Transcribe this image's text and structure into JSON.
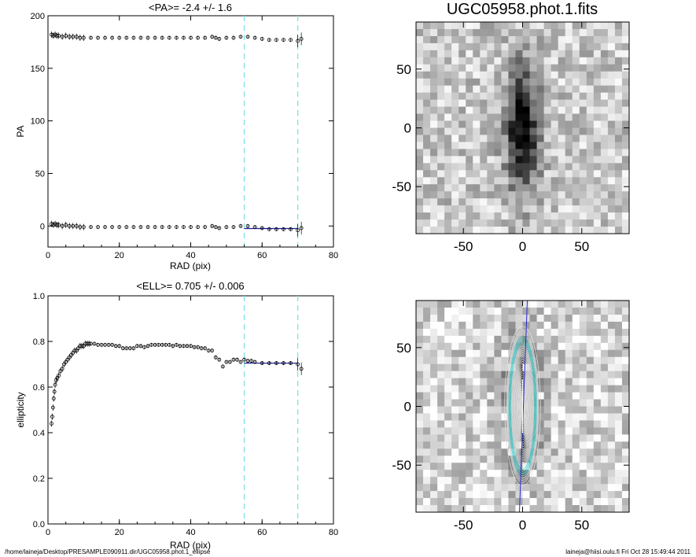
{
  "footer": {
    "left": "/home/laineja/Desktop/PRESAMPLE090911.dir/UGC05958.phot.1_ellipse",
    "right": "laineja@hiisi.oulu.fi  Fri Oct 28 15:49:44 2011"
  },
  "image_title": "UGC05958.phot.1.fits",
  "image_axes": {
    "ticks": [
      "-50",
      "0",
      "50"
    ],
    "tick_values": [
      -50,
      0,
      50
    ],
    "range": [
      -90,
      90
    ]
  },
  "chart_data": [
    {
      "type": "scatter",
      "title": "<PA>=  -2.4 +/-   1.6",
      "xlabel": "RAD (pix)",
      "ylabel": "PA",
      "xlim": [
        0,
        80
      ],
      "ylim": [
        -20,
        200
      ],
      "xticks": [
        "0",
        "20",
        "40",
        "60",
        "80"
      ],
      "yticks": [
        "0",
        "50",
        "100",
        "150",
        "200"
      ],
      "vlines": [
        55,
        70
      ],
      "fit_range": [
        55,
        70
      ],
      "fit_value": -2.4,
      "series": [
        {
          "x": [
            1,
            1.5,
            2,
            2.5,
            3,
            4,
            5,
            6,
            7,
            8,
            9,
            10,
            12,
            14,
            16,
            18,
            20,
            22,
            24,
            26,
            28,
            30,
            32,
            34,
            36,
            38,
            40,
            42,
            44,
            46,
            47,
            48,
            50,
            52,
            54,
            56,
            58,
            60,
            62,
            64,
            66,
            68,
            70,
            71
          ],
          "y": [
            182,
            181,
            182,
            181,
            181,
            180,
            181,
            180,
            180,
            180,
            179,
            179,
            179,
            179,
            179,
            179,
            179,
            179,
            179,
            179,
            179,
            179,
            179,
            179,
            179,
            179,
            179,
            179,
            179,
            180,
            179,
            178,
            179,
            179,
            180,
            180,
            179,
            178,
            177,
            177,
            177,
            177,
            176,
            178
          ]
        },
        {
          "x": [
            1,
            1.5,
            2,
            2.5,
            3,
            4,
            5,
            6,
            7,
            8,
            9,
            10,
            12,
            14,
            16,
            18,
            20,
            22,
            24,
            26,
            28,
            30,
            32,
            34,
            36,
            38,
            40,
            42,
            44,
            46,
            47,
            48,
            50,
            52,
            54,
            56,
            58,
            60,
            62,
            64,
            66,
            68,
            70,
            71
          ],
          "y": [
            2,
            1,
            2,
            1,
            1,
            0,
            1,
            0,
            0,
            0,
            -1,
            -1,
            -1,
            -1,
            -1,
            -1,
            -1,
            -1,
            -1,
            -1,
            -1,
            -1,
            -1,
            -1,
            -1,
            -1,
            -1,
            -1,
            -1,
            0,
            -1,
            -2,
            -1,
            -1,
            0,
            0,
            -1,
            -2,
            -3,
            -3,
            -3,
            -3,
            -4,
            -2
          ]
        }
      ]
    },
    {
      "type": "scatter",
      "title": "<ELL>= 0.705 +/-  0.006",
      "xlabel": "RAD (pix)",
      "ylabel": "ellipticity",
      "xlim": [
        0,
        80
      ],
      "ylim": [
        0,
        1
      ],
      "xticks": [
        "0",
        "20",
        "40",
        "60",
        "80"
      ],
      "yticks": [
        "0.0",
        "0.2",
        "0.4",
        "0.6",
        "0.8",
        "1.0"
      ],
      "vlines": [
        55,
        70
      ],
      "fit_range": [
        55,
        70
      ],
      "fit_value": 0.705,
      "series": [
        {
          "x": [
            1,
            1.2,
            1.4,
            1.6,
            1.8,
            2,
            2.3,
            2.6,
            3,
            3.5,
            4,
            4.5,
            5,
            5.5,
            6,
            6.5,
            7,
            7.5,
            8,
            8.5,
            9,
            9.5,
            10,
            10.5,
            11,
            11.5,
            12,
            13,
            14,
            15,
            16,
            17,
            18,
            19,
            20,
            21,
            22,
            23,
            24,
            25,
            26,
            27,
            28,
            29,
            30,
            31,
            32,
            33,
            34,
            35,
            36,
            37,
            38,
            39,
            40,
            41,
            42,
            43,
            44,
            45,
            46,
            47,
            48,
            49,
            50,
            51,
            52,
            53,
            54,
            55,
            56,
            57,
            58,
            60,
            62,
            64,
            66,
            68,
            70,
            71
          ],
          "y": [
            0.44,
            0.47,
            0.51,
            0.55,
            0.58,
            0.61,
            0.63,
            0.64,
            0.65,
            0.67,
            0.68,
            0.7,
            0.71,
            0.72,
            0.73,
            0.74,
            0.75,
            0.76,
            0.76,
            0.77,
            0.78,
            0.78,
            0.78,
            0.79,
            0.79,
            0.79,
            0.79,
            0.79,
            0.785,
            0.785,
            0.785,
            0.785,
            0.785,
            0.78,
            0.78,
            0.77,
            0.77,
            0.77,
            0.77,
            0.78,
            0.78,
            0.775,
            0.78,
            0.785,
            0.785,
            0.785,
            0.785,
            0.785,
            0.785,
            0.78,
            0.785,
            0.78,
            0.78,
            0.78,
            0.78,
            0.775,
            0.775,
            0.77,
            0.77,
            0.76,
            0.76,
            0.73,
            0.72,
            0.69,
            0.71,
            0.71,
            0.72,
            0.72,
            0.71,
            0.72,
            0.715,
            0.715,
            0.71,
            0.705,
            0.705,
            0.705,
            0.705,
            0.705,
            0.7,
            0.68
          ]
        }
      ]
    }
  ]
}
